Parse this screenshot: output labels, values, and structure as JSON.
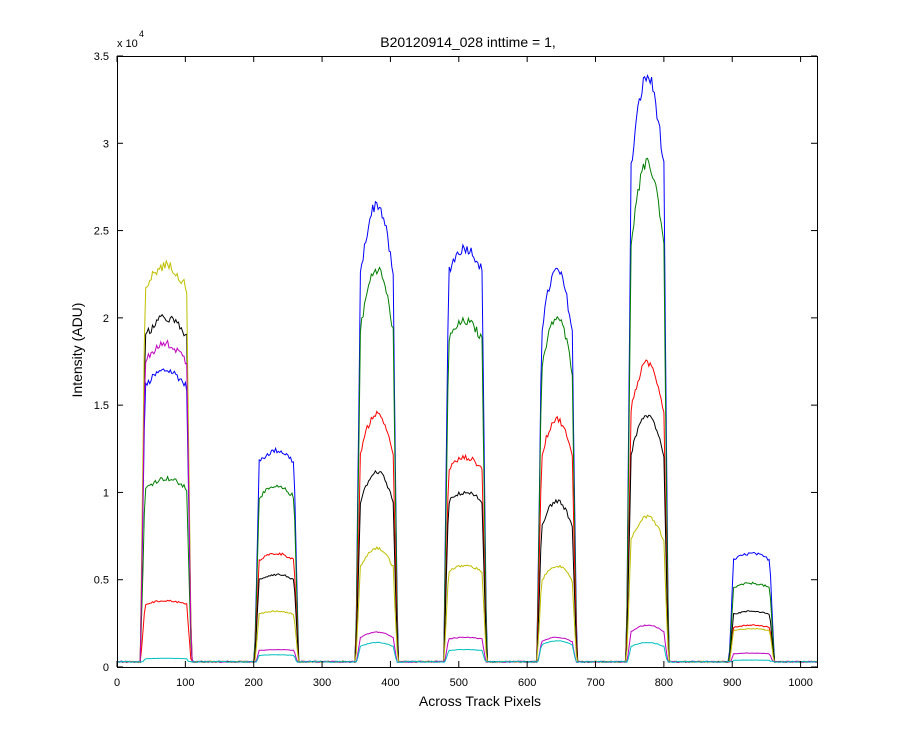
{
  "chart_data": {
    "type": "line",
    "title": "B20120914_028 inttime = 1,",
    "xlabel": "Across Track Pixels",
    "ylabel": "Intensity (ADU)",
    "exponent_label": "x 10",
    "exponent_power": "4",
    "xlim": [
      0,
      1024
    ],
    "ylim": [
      0,
      35000
    ],
    "x_ticks": [
      0,
      100,
      200,
      300,
      400,
      500,
      600,
      700,
      800,
      900,
      1000
    ],
    "x_tick_labels": [
      "0",
      "100",
      "200",
      "300",
      "400",
      "500",
      "600",
      "700",
      "800",
      "900",
      "1000"
    ],
    "y_ticks": [
      0,
      5000,
      10000,
      15000,
      20000,
      25000,
      30000,
      35000
    ],
    "y_tick_labels": [
      "0",
      "0.5",
      "1",
      "1.5",
      "2",
      "2.5",
      "3",
      "3.5"
    ],
    "grid": false,
    "legend": "none",
    "baseline": 300,
    "segments": [
      {
        "start": 37,
        "end": 106,
        "shape": "flat"
      },
      {
        "start": 204,
        "end": 263,
        "shape": "flat"
      },
      {
        "start": 352,
        "end": 408,
        "shape": "peak"
      },
      {
        "start": 481,
        "end": 538,
        "shape": "flat"
      },
      {
        "start": 617,
        "end": 670,
        "shape": "peak"
      },
      {
        "start": 748,
        "end": 804,
        "shape": "peak"
      },
      {
        "start": 898,
        "end": 959,
        "shape": "flat"
      }
    ],
    "series": [
      {
        "color": "#0000ff",
        "peaks": [
          17000,
          12400,
          26500,
          24000,
          22700,
          33800,
          6500
        ]
      },
      {
        "color": "#007f00",
        "peaks": [
          10800,
          10300,
          22800,
          19800,
          20000,
          28800,
          4800
        ]
      },
      {
        "color": "#ff0000",
        "peaks": [
          3800,
          6500,
          14500,
          12000,
          14200,
          17400,
          2400
        ]
      },
      {
        "color": "#000000",
        "peaks": [
          20000,
          5300,
          11200,
          10000,
          9500,
          14400,
          3200
        ]
      },
      {
        "color": "#bfbf00",
        "peaks": [
          23000,
          3200,
          6800,
          5800,
          5800,
          8600,
          2200
        ]
      },
      {
        "color": "#bf00bf",
        "peaks": [
          18500,
          1000,
          2000,
          1700,
          1700,
          2400,
          800
        ]
      },
      {
        "color": "#00bfbf",
        "peaks": [
          500,
          700,
          1400,
          1000,
          1500,
          1400,
          400
        ]
      }
    ]
  }
}
